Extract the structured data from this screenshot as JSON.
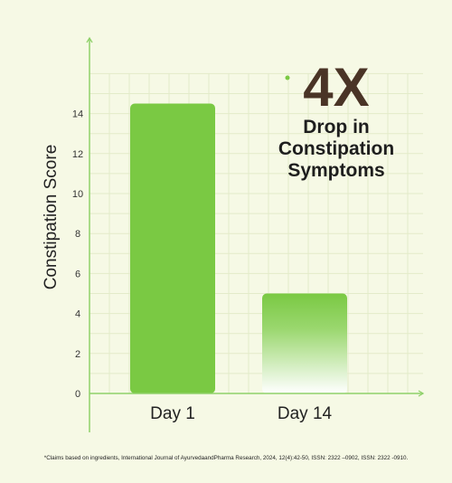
{
  "chart_data": {
    "type": "bar",
    "categories": [
      "Day 1",
      "Day 14"
    ],
    "values": [
      14.5,
      5.0
    ],
    "ylabel": "Constipation Score",
    "xlabel": "",
    "ylim": [
      0,
      16
    ],
    "yticks": [
      0,
      2,
      4,
      6,
      8,
      10,
      12,
      14
    ],
    "grid": true,
    "legend": "none"
  },
  "headline": {
    "big": "4X",
    "line1": "Drop in",
    "line2": "Constipation",
    "line3": "Symptoms"
  },
  "footnote": "*Claims based on ingredients, International Journal of AyurvedaandPharma Research, 2024, 12(4):42-50, ISSN: 2322 –0902, ISSN: 2322 -0910.",
  "colors": {
    "bar": "#7ac943",
    "axis": "#8fd16a",
    "grid": "#e3ebc9",
    "headline": "#4a3426",
    "background": "#f6f9e5"
  }
}
